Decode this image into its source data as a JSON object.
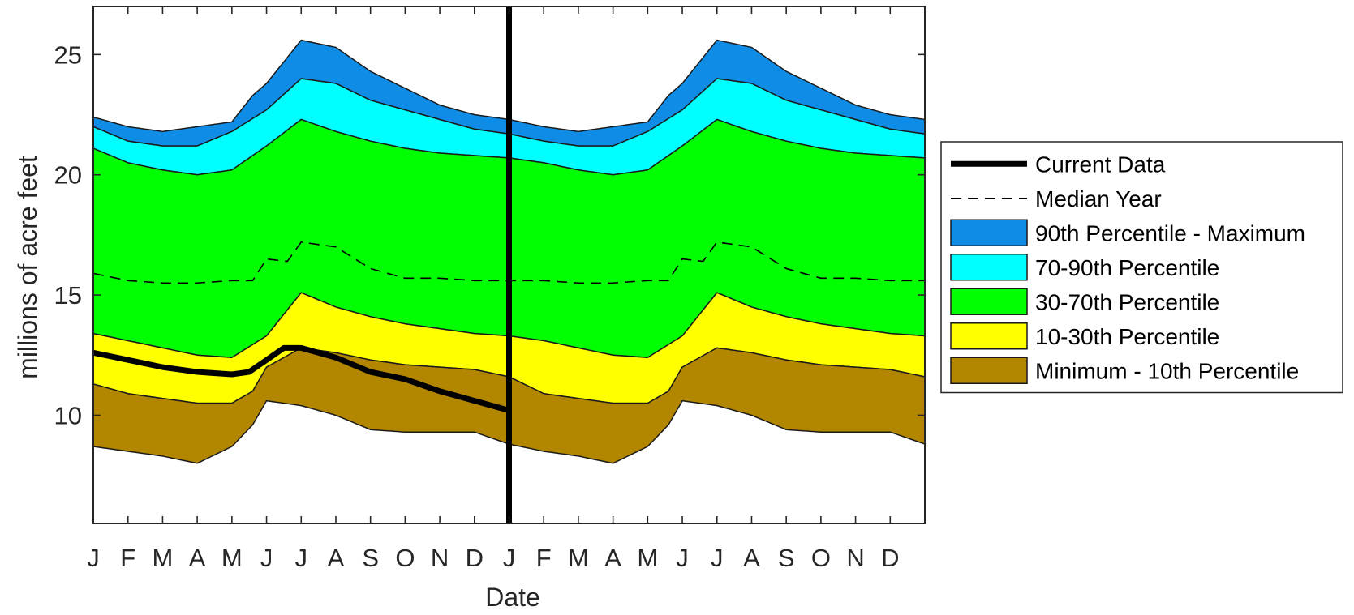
{
  "chart_data": {
    "type": "area",
    "xlabel": "Date",
    "ylabel": "millions of acre feet",
    "ylim": [
      5.5,
      27
    ],
    "xlim": [
      0,
      24
    ],
    "y_ticks": [
      10,
      15,
      20,
      25
    ],
    "x_tick_labels": [
      "J",
      "F",
      "M",
      "A",
      "M",
      "J",
      "J",
      "A",
      "S",
      "O",
      "N",
      "D",
      "J",
      "F",
      "M",
      "A",
      "M",
      "J",
      "J",
      "A",
      "S",
      "O",
      "N",
      "D"
    ],
    "current_date_marker": 12,
    "x_unit": "months (two calendar years, x = 0 is January of year 1)",
    "bands": [
      {
        "name": "90th Percentile - Maximum",
        "color": "#0f8ce6",
        "upper": [
          [
            0,
            22.4
          ],
          [
            1,
            22.0
          ],
          [
            2,
            21.8
          ],
          [
            3,
            22.0
          ],
          [
            4,
            22.2
          ],
          [
            4.6,
            23.3
          ],
          [
            5,
            23.8
          ],
          [
            6,
            25.6
          ],
          [
            7,
            25.3
          ],
          [
            8,
            24.3
          ],
          [
            9,
            23.6
          ],
          [
            10,
            22.9
          ],
          [
            11,
            22.5
          ],
          [
            12,
            22.3
          ]
        ]
      },
      {
        "name": "70-90th Percentile",
        "color": "#00ffff",
        "upper": [
          [
            0,
            22.0
          ],
          [
            1,
            21.4
          ],
          [
            2,
            21.2
          ],
          [
            3,
            21.2
          ],
          [
            4,
            21.8
          ],
          [
            5,
            22.7
          ],
          [
            6,
            24.0
          ],
          [
            7,
            23.8
          ],
          [
            8,
            23.1
          ],
          [
            9,
            22.7
          ],
          [
            10,
            22.3
          ],
          [
            11,
            21.9
          ],
          [
            12,
            21.7
          ]
        ]
      },
      {
        "name": "30-70th Percentile",
        "color": "#00ff00",
        "upper": [
          [
            0,
            21.1
          ],
          [
            1,
            20.5
          ],
          [
            2,
            20.2
          ],
          [
            3,
            20.0
          ],
          [
            4,
            20.2
          ],
          [
            5,
            21.2
          ],
          [
            6,
            22.3
          ],
          [
            7,
            21.8
          ],
          [
            8,
            21.4
          ],
          [
            9,
            21.1
          ],
          [
            10,
            20.9
          ],
          [
            11,
            20.8
          ],
          [
            12,
            20.7
          ]
        ]
      },
      {
        "name": "10-30th Percentile",
        "color": "#ffff00",
        "upper": [
          [
            0,
            13.4
          ],
          [
            1,
            13.1
          ],
          [
            2,
            12.8
          ],
          [
            3,
            12.5
          ],
          [
            4,
            12.4
          ],
          [
            5,
            13.3
          ],
          [
            6,
            15.1
          ],
          [
            7,
            14.5
          ],
          [
            8,
            14.1
          ],
          [
            9,
            13.8
          ],
          [
            10,
            13.6
          ],
          [
            11,
            13.4
          ],
          [
            12,
            13.3
          ]
        ]
      },
      {
        "name": "Minimum - 10th Percentile",
        "color": "#b38600",
        "upper": [
          [
            0,
            11.3
          ],
          [
            1,
            10.9
          ],
          [
            2,
            10.7
          ],
          [
            3,
            10.5
          ],
          [
            4,
            10.5
          ],
          [
            4.6,
            11.0
          ],
          [
            5,
            12.0
          ],
          [
            6,
            12.8
          ],
          [
            7,
            12.6
          ],
          [
            8,
            12.3
          ],
          [
            9,
            12.1
          ],
          [
            10,
            12.0
          ],
          [
            11,
            11.9
          ],
          [
            12,
            11.6
          ]
        ],
        "lower": [
          [
            0,
            8.7
          ],
          [
            1,
            8.5
          ],
          [
            2,
            8.3
          ],
          [
            3,
            8.0
          ],
          [
            4,
            8.7
          ],
          [
            4.6,
            9.6
          ],
          [
            5,
            10.6
          ],
          [
            6,
            10.4
          ],
          [
            7,
            10.0
          ],
          [
            8,
            9.4
          ],
          [
            9,
            9.3
          ],
          [
            10,
            9.3
          ],
          [
            11,
            9.3
          ],
          [
            12,
            8.8
          ]
        ]
      }
    ],
    "series": [
      {
        "name": "Median Year",
        "style": "dashed",
        "color": "#000000",
        "x": [
          0,
          1,
          2,
          3,
          4,
          4.6,
          5,
          5.6,
          6,
          7,
          8,
          9,
          10,
          11,
          12
        ],
        "y": [
          15.9,
          15.6,
          15.5,
          15.5,
          15.6,
          15.6,
          16.5,
          16.4,
          17.2,
          17.0,
          16.1,
          15.7,
          15.7,
          15.6,
          15.6
        ]
      },
      {
        "name": "Current Data",
        "style": "solid",
        "color": "#000000",
        "x": [
          0,
          1,
          2,
          3,
          4,
          4.5,
          5,
          5.5,
          6,
          7,
          8,
          9,
          10,
          11,
          12
        ],
        "y": [
          12.6,
          12.3,
          12.0,
          11.8,
          11.7,
          11.8,
          12.3,
          12.8,
          12.8,
          12.4,
          11.8,
          11.5,
          11.0,
          10.6,
          10.2
        ]
      }
    ],
    "legend_position": "outside-right",
    "legend_entries": [
      "Current Data",
      "Median Year",
      "90th Percentile - Maximum",
      "70-90th Percentile",
      "30-70th Percentile",
      "10-30th Percentile",
      "Minimum - 10th Percentile"
    ],
    "grid": false
  }
}
